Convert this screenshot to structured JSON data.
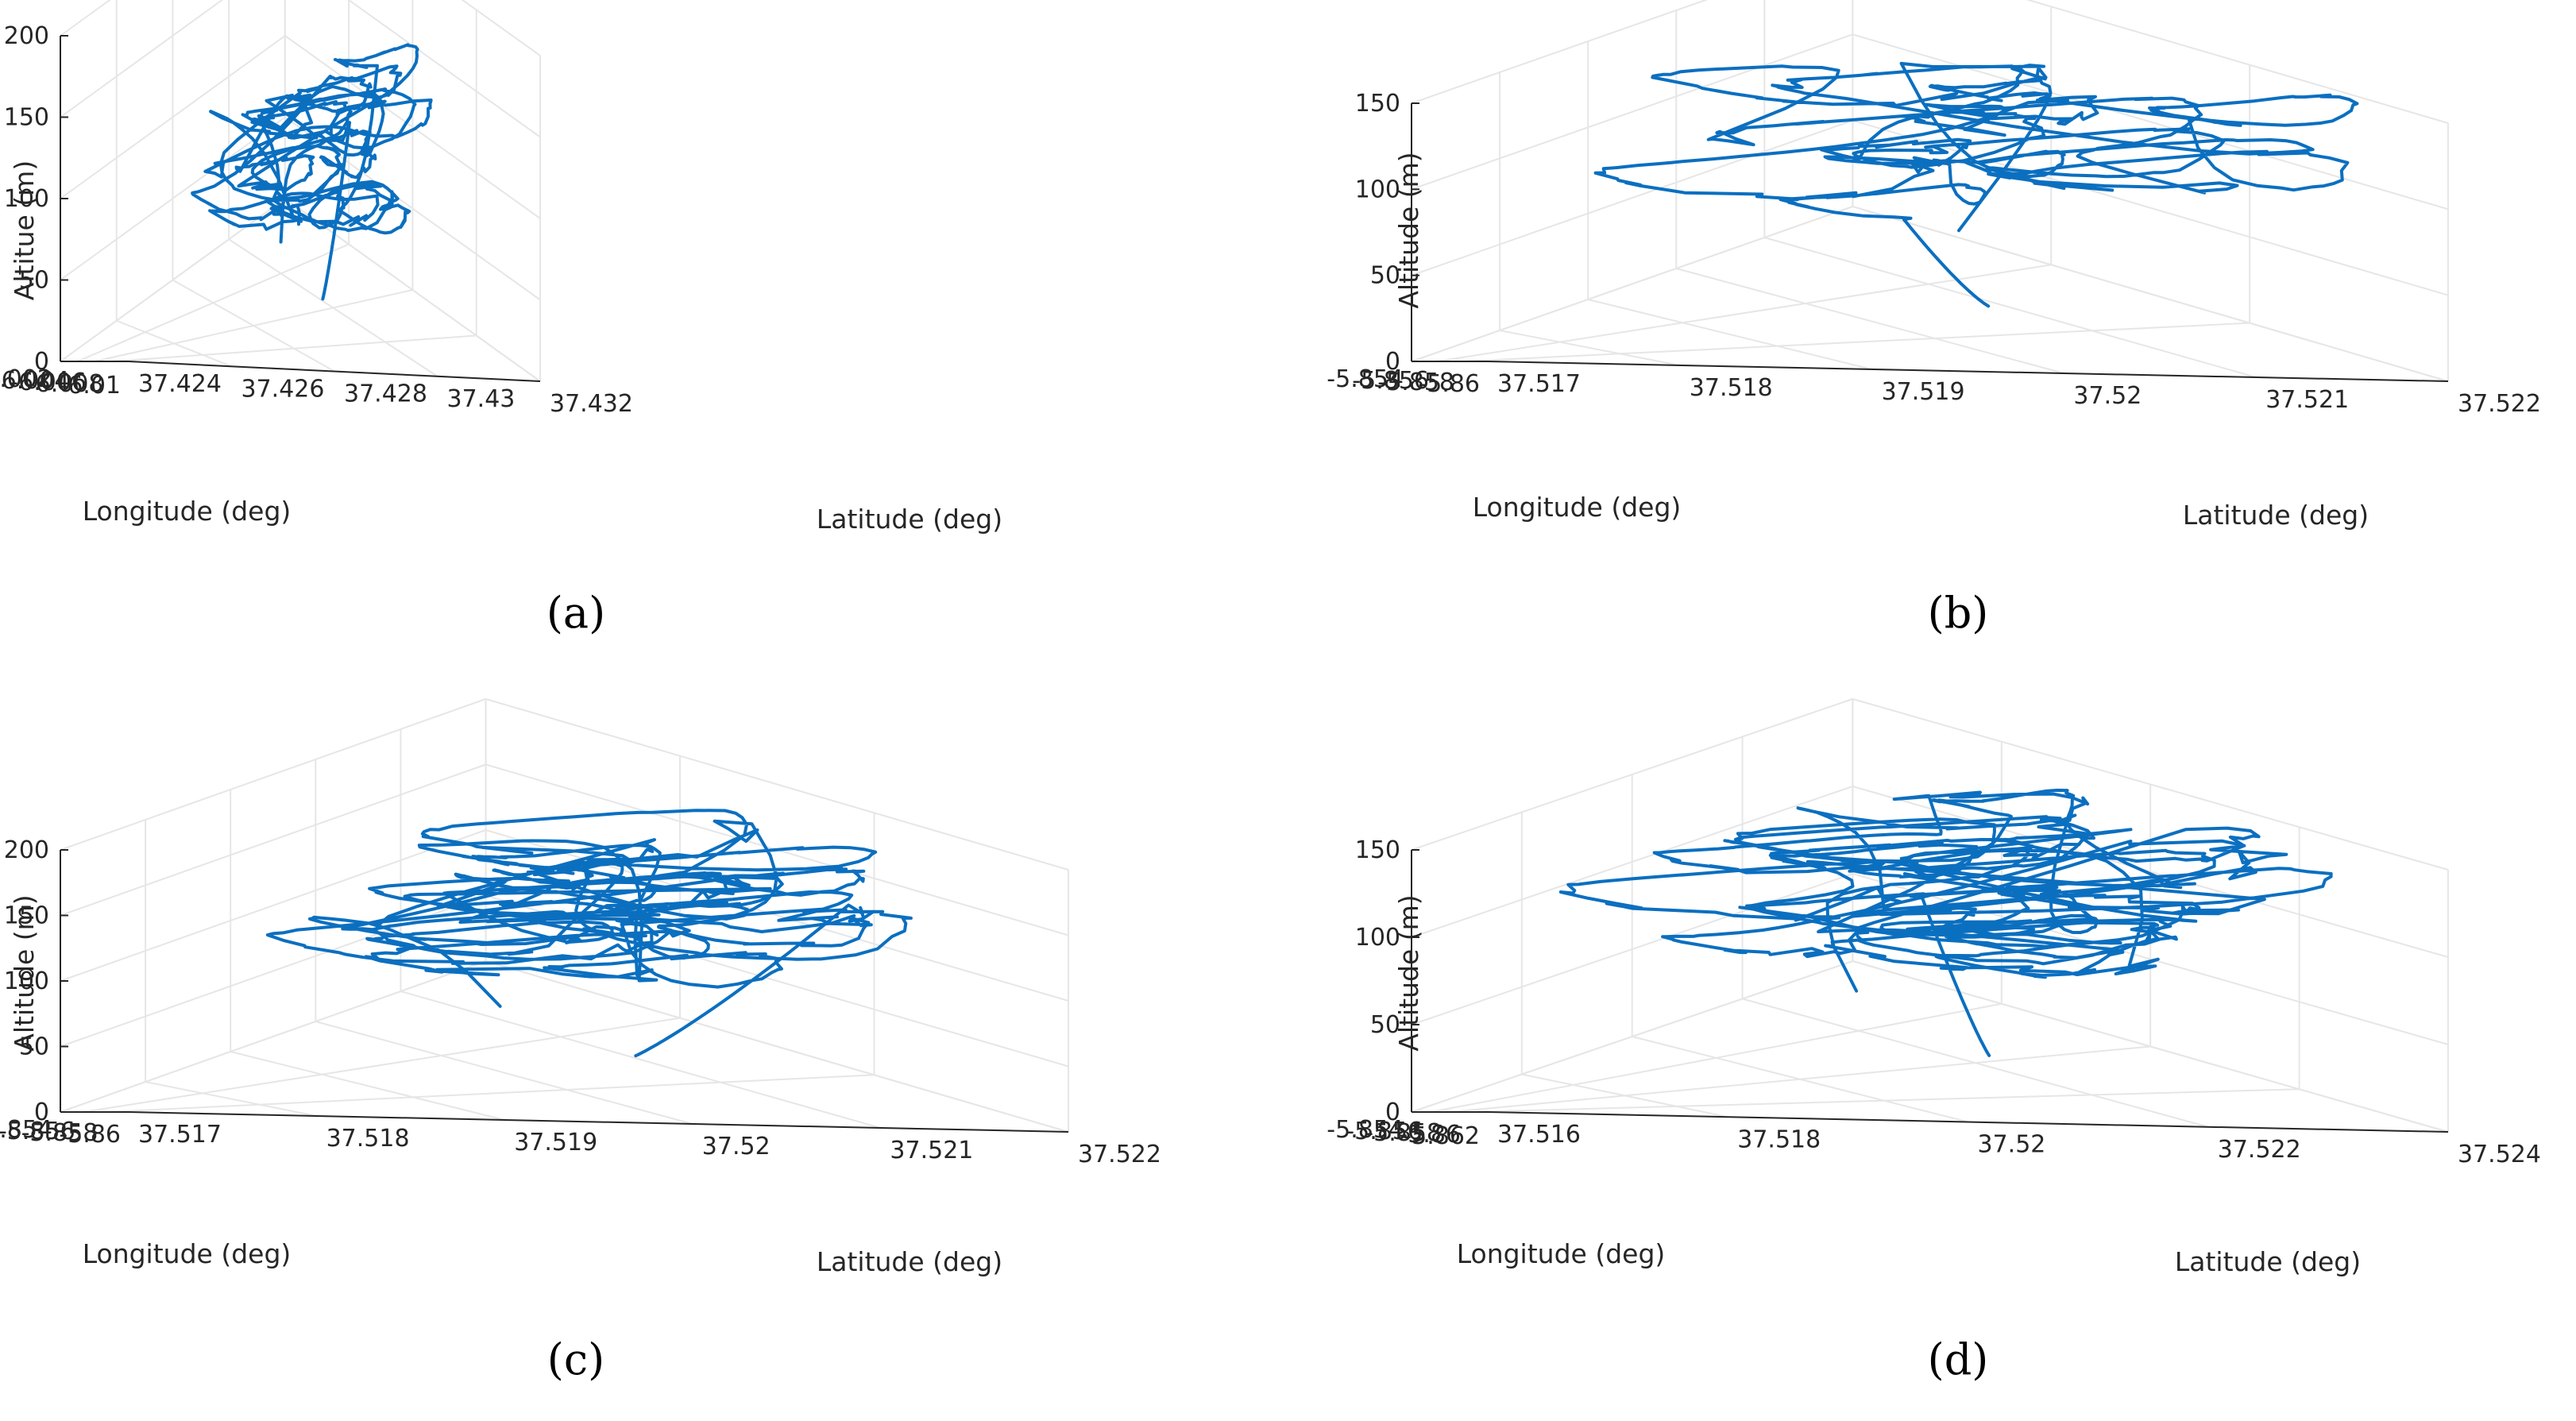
{
  "chart_data": [
    {
      "type": "line3d",
      "caption": "(a)",
      "xlabel": "Longitude (deg)",
      "ylabel": "Latitude (deg)",
      "zlabel": "Altitue (m)",
      "xticks": [
        "-6.002",
        "-6.004",
        "-6.006",
        "-6.008",
        "-6.01"
      ],
      "yticks": [
        "37.424",
        "37.426",
        "37.428",
        "37.43",
        "37.432"
      ],
      "zticks": [
        "0",
        "50",
        "100",
        "150",
        "200"
      ],
      "xlim": [
        -6.01,
        -6.002
      ],
      "ylim": [
        37.424,
        37.432
      ],
      "zlim": [
        0,
        200
      ],
      "color": "#0b6fc0"
    },
    {
      "type": "line3d",
      "caption": "(b)",
      "xlabel": "Longitude (deg)",
      "ylabel": "Latitude (deg)",
      "zlabel": "Altitude (m)",
      "xticks": [
        "-5.854",
        "-5.856",
        "-5.858",
        "-5.86"
      ],
      "yticks": [
        "37.517",
        "37.518",
        "37.519",
        "37.52",
        "37.521",
        "37.522"
      ],
      "zticks": [
        "0",
        "50",
        "100",
        "150"
      ],
      "xlim": [
        -5.86,
        -5.854
      ],
      "ylim": [
        37.517,
        37.522
      ],
      "zlim": [
        0,
        150
      ],
      "color": "#0b6fc0"
    },
    {
      "type": "line3d",
      "caption": "(c)",
      "xlabel": "Longitude (deg)",
      "ylabel": "Latitude (deg)",
      "zlabel": "Altitude (m)",
      "xticks": [
        "-5.854",
        "-5.856",
        "-5.858",
        "-5.86"
      ],
      "yticks": [
        "37.517",
        "37.518",
        "37.519",
        "37.52",
        "37.521",
        "37.522"
      ],
      "zticks": [
        "0",
        "50",
        "100",
        "150",
        "200"
      ],
      "xlim": [
        -5.86,
        -5.854
      ],
      "ylim": [
        37.517,
        37.522
      ],
      "zlim": [
        0,
        200
      ],
      "color": "#0b6fc0"
    },
    {
      "type": "line3d",
      "caption": "(d)",
      "xlabel": "Longitude (deg)",
      "ylabel": "Latitude (deg)",
      "zlabel": "Altitude (m)",
      "xticks": [
        "-5.854",
        "-5.856",
        "-5.858",
        "-5.86",
        "-5.862"
      ],
      "yticks": [
        "37.516",
        "37.518",
        "37.52",
        "37.522",
        "37.524"
      ],
      "zticks": [
        "0",
        "50",
        "100",
        "150"
      ],
      "xlim": [
        -5.862,
        -5.854
      ],
      "ylim": [
        37.516,
        37.524
      ],
      "zlim": [
        0,
        150
      ],
      "color": "#0b6fc0"
    }
  ]
}
